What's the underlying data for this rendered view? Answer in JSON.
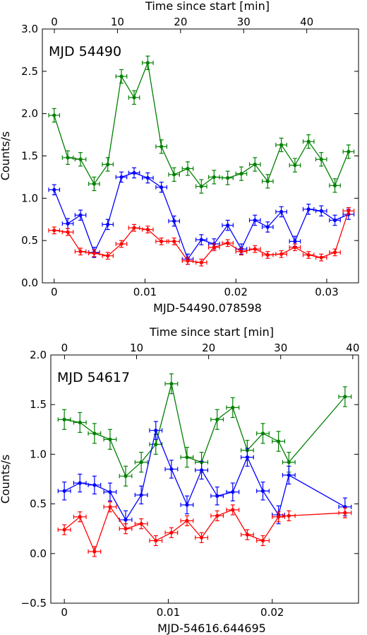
{
  "chart_data": [
    {
      "type": "line",
      "annotation": "MJD 54490",
      "xlabel": "MJD-54490.078598",
      "x_top_label": "Time since start [min]",
      "ylabel": "Counts/s",
      "xlim": [
        -0.0013,
        0.0335
      ],
      "ylim": [
        0.0,
        3.0
      ],
      "top_xlim_min": [
        -1.9,
        48.2
      ],
      "x_ticks": [
        0,
        0.01,
        0.02,
        0.03
      ],
      "x_tick_labels": [
        "0",
        "0.01",
        "0.02",
        "0.03"
      ],
      "y_ticks": [
        0,
        0.5,
        1,
        1.5,
        2,
        2.5,
        3
      ],
      "y_tick_labels": [
        "0.0",
        "0.5",
        "1.0",
        "1.5",
        "2.0",
        "2.5",
        "3.0"
      ],
      "top_ticks": [
        0,
        10,
        20,
        30,
        40
      ],
      "top_tick_labels": [
        "0",
        "10",
        "20",
        "30",
        "40"
      ],
      "x": [
        0.0,
        0.0015,
        0.0029,
        0.0044,
        0.0059,
        0.0074,
        0.0088,
        0.0103,
        0.0118,
        0.0132,
        0.0147,
        0.0162,
        0.0176,
        0.0191,
        0.0206,
        0.0221,
        0.0235,
        0.025,
        0.0265,
        0.028,
        0.0294,
        0.0309,
        0.0324
      ],
      "x_err": 0.0006,
      "series": [
        {
          "color": "#008000",
          "y_err": 0.08,
          "values": [
            1.98,
            1.48,
            1.46,
            1.17,
            1.4,
            2.44,
            2.19,
            2.6,
            1.61,
            1.28,
            1.35,
            1.14,
            1.25,
            1.24,
            1.29,
            1.4,
            1.2,
            1.63,
            1.39,
            1.67,
            1.46,
            1.15,
            1.55
          ]
        },
        {
          "color": "#0000ff",
          "y_err": 0.06,
          "values": [
            1.1,
            0.7,
            0.8,
            0.36,
            0.69,
            1.25,
            1.3,
            1.24,
            1.13,
            0.73,
            0.28,
            0.51,
            0.46,
            0.68,
            0.4,
            0.74,
            0.66,
            0.84,
            0.49,
            0.87,
            0.85,
            0.74,
            0.81
          ]
        },
        {
          "color": "#ff0000",
          "y_err": 0.04,
          "values": [
            0.62,
            0.6,
            0.37,
            0.35,
            0.32,
            0.46,
            0.65,
            0.63,
            0.49,
            0.49,
            0.26,
            0.24,
            0.42,
            0.47,
            0.37,
            0.4,
            0.33,
            0.34,
            0.42,
            0.33,
            0.3,
            0.36,
            0.85
          ]
        }
      ]
    },
    {
      "type": "line",
      "annotation": "MJD 54617",
      "xlabel": "MJD-54616.644695",
      "x_top_label": "Time since start [min]",
      "ylabel": "Counts/s",
      "xlim": [
        -0.0013,
        0.0283
      ],
      "ylim": [
        -0.5,
        2.0
      ],
      "top_xlim_min": [
        -1.9,
        40.8
      ],
      "x_ticks": [
        0,
        0.01,
        0.02
      ],
      "x_tick_labels": [
        "0",
        "0.01",
        "0.02"
      ],
      "y_ticks": [
        -0.5,
        0,
        0.5,
        1,
        1.5,
        2
      ],
      "y_tick_labels": [
        "−0.5",
        "0.0",
        "0.5",
        "1.0",
        "1.5",
        "2.0"
      ],
      "top_ticks": [
        0,
        10,
        20,
        30,
        40
      ],
      "top_tick_labels": [
        "0",
        "10",
        "20",
        "30",
        "40"
      ],
      "x": [
        0.0,
        0.0015,
        0.0029,
        0.0044,
        0.0059,
        0.0074,
        0.0088,
        0.0103,
        0.0118,
        0.0132,
        0.0147,
        0.0162,
        0.0176,
        0.0191,
        0.0206,
        0.0216,
        0.027
      ],
      "x_err": 0.0006,
      "series": [
        {
          "color": "#008000",
          "y_err": 0.1,
          "values": [
            1.35,
            1.32,
            1.21,
            1.15,
            0.78,
            0.92,
            1.1,
            1.71,
            0.97,
            0.92,
            1.35,
            1.47,
            1.04,
            1.21,
            1.13,
            0.92,
            1.58
          ]
        },
        {
          "color": "#0000ff",
          "y_err": 0.09,
          "values": [
            0.63,
            0.71,
            0.69,
            0.62,
            0.34,
            0.59,
            1.24,
            0.85,
            0.49,
            0.84,
            0.58,
            0.62,
            0.97,
            0.63,
            0.39,
            0.79,
            0.47
          ]
        },
        {
          "color": "#ff0000",
          "y_err": 0.05,
          "values": [
            0.24,
            0.37,
            0.02,
            0.47,
            0.25,
            0.3,
            0.13,
            0.21,
            0.33,
            0.16,
            0.38,
            0.44,
            0.19,
            0.13,
            0.37,
            0.38,
            0.41
          ]
        }
      ]
    }
  ]
}
